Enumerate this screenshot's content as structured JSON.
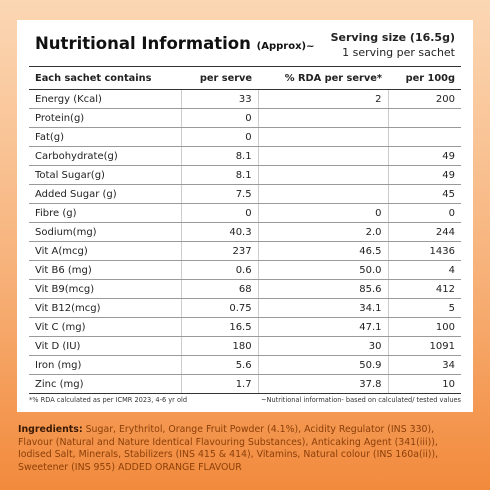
{
  "header": {
    "title": "Nutritional Information",
    "approx": "(Approx)~",
    "serving_size": "Serving size (16.5g)",
    "servings": "1 serving per sachet"
  },
  "table": {
    "columns": [
      "Each sachet contains",
      "per serve",
      "% RDA per serve*",
      "per 100g"
    ],
    "rows": [
      [
        "Energy (Kcal)",
        "33",
        "2",
        "200"
      ],
      [
        "Protein(g)",
        "0",
        null,
        null
      ],
      [
        "Fat(g)",
        "0",
        null,
        null
      ],
      [
        "Carbohydrate(g)",
        "8.1",
        null,
        "49"
      ],
      [
        "Total Sugar(g)",
        "8.1",
        null,
        "49"
      ],
      [
        "Added Sugar (g)",
        "7.5",
        null,
        "45"
      ],
      [
        "Fibre (g)",
        "0",
        "0",
        "0"
      ],
      [
        "Sodium(mg)",
        "40.3",
        "2.0",
        "244"
      ],
      [
        "Vit A(mcg)",
        "237",
        "46.5",
        "1436"
      ],
      [
        "Vit B6 (mg)",
        "0.6",
        "50.0",
        "4"
      ],
      [
        "Vit B9(mcg)",
        "68",
        "85.6",
        "412"
      ],
      [
        "Vit B12(mcg)",
        "0.75",
        "34.1",
        "5"
      ],
      [
        "Vit C (mg)",
        "16.5",
        "47.1",
        "100"
      ],
      [
        "Vit D (IU)",
        "180",
        "30",
        "1091"
      ],
      [
        "Iron (mg)",
        "5.6",
        "50.9",
        "34"
      ],
      [
        "Zinc (mg)",
        "1.7",
        "37.8",
        "10"
      ]
    ]
  },
  "footnotes": [
    "*% RDA calculated as per ICMR 2023, 4-6 yr old",
    "~Nutritional information- based on calculated/ tested values"
  ],
  "ingredients": {
    "label": "Ingredients:",
    "text": "Sugar, Erythritol, Orange Fruit Powder (4.1%), Acidity Regulator (INS 330), Flavour (Natural and Nature Identical Flavouring Substances), Anticaking Agent (341(iii)), Iodised Salt, Minerals, Stabilizers (INS 415 & 414), Vitamins, Natural colour (INS 160a(ii)), Sweetener (INS 955) ADDED ORANGE FLAVOUR"
  }
}
